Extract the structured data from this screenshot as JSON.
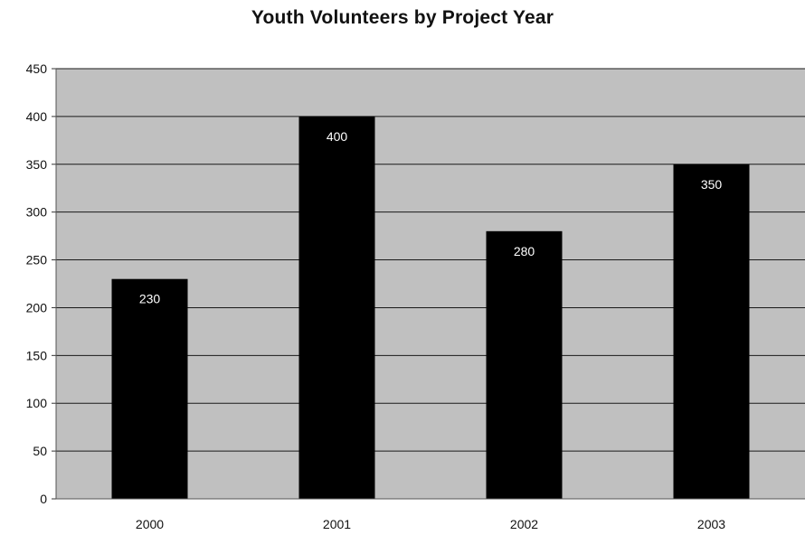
{
  "chart_data": {
    "type": "bar",
    "title": "Youth Volunteers by Project Year",
    "xlabel": "",
    "ylabel": "",
    "categories": [
      "2000",
      "2001",
      "2002",
      "2003"
    ],
    "values": [
      230,
      400,
      280,
      350
    ],
    "data_labels": [
      "230",
      "400",
      "280",
      "350"
    ],
    "ylim": [
      0,
      450
    ],
    "yticks": [
      0,
      50,
      100,
      150,
      200,
      250,
      300,
      350,
      400,
      450
    ],
    "ytick_labels": [
      "0",
      "50",
      "100",
      "150",
      "200",
      "250",
      "300",
      "350",
      "400",
      "450"
    ],
    "grid": true,
    "legend": "none",
    "colors": {
      "bar": "#000000",
      "plot_background": "#c0c0c0",
      "gridline": "#1a1a1a",
      "data_label": "#ffffff"
    }
  }
}
